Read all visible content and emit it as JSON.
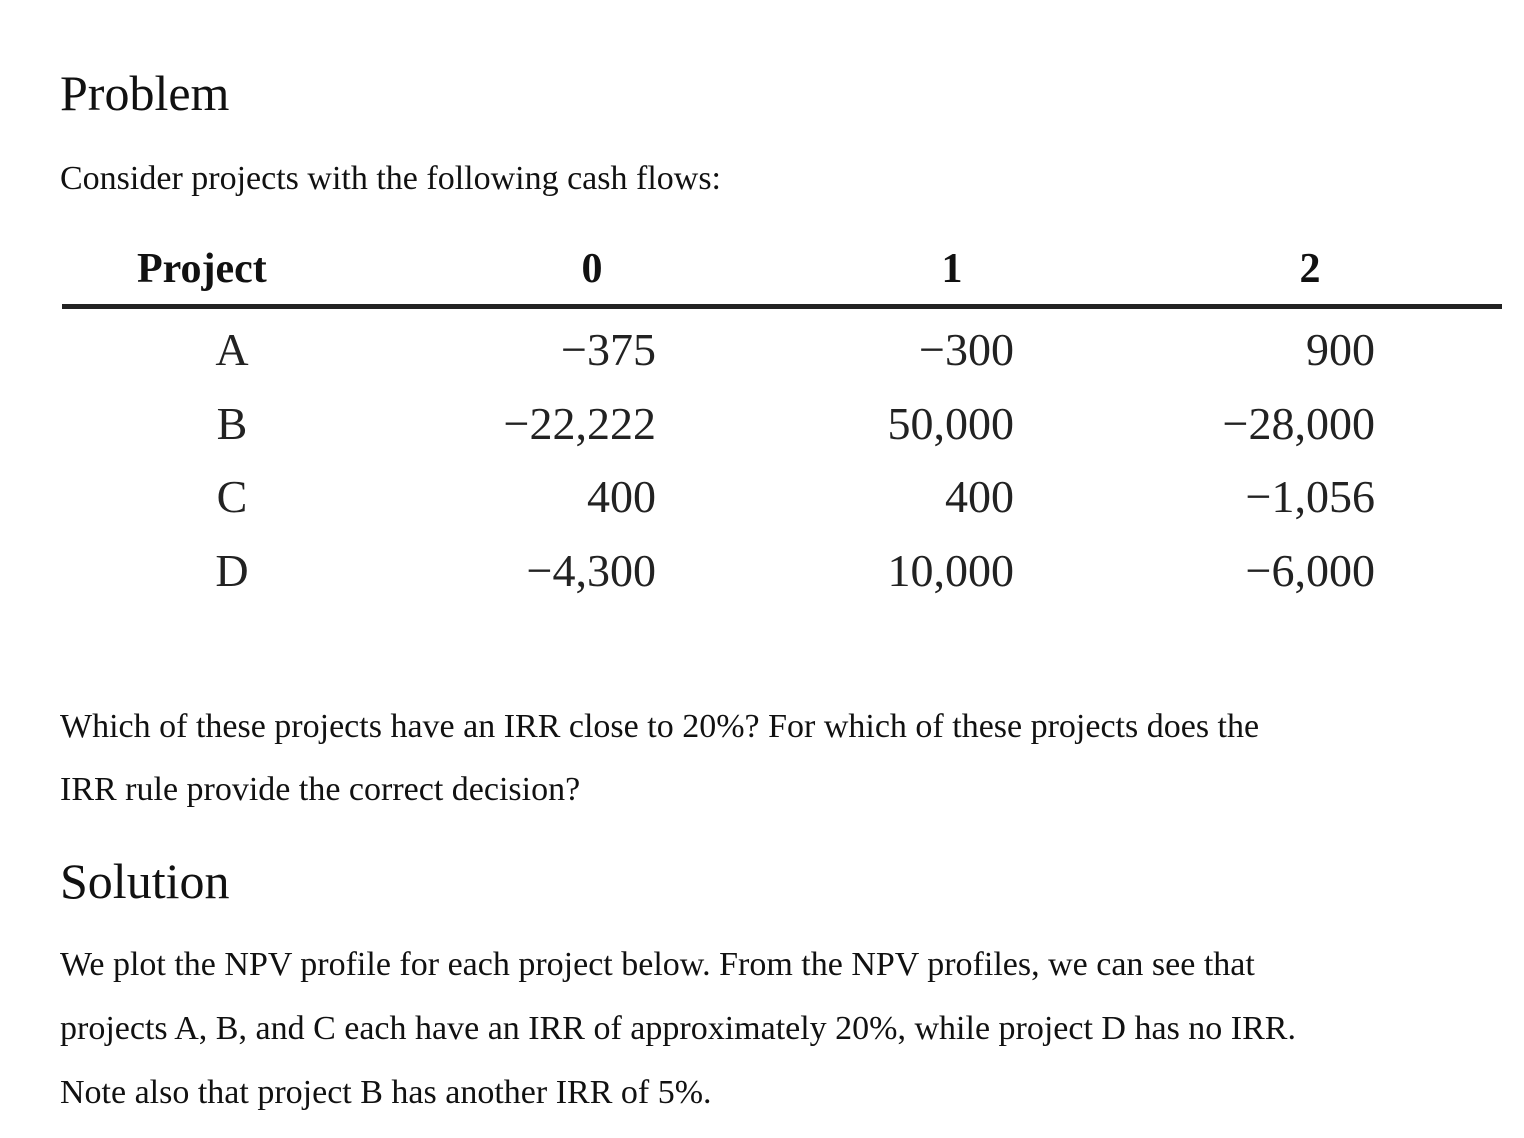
{
  "problem": {
    "heading": "Problem",
    "intro": "Consider projects with the following cash flows:",
    "table": {
      "header": [
        "Project",
        "0",
        "1",
        "2"
      ],
      "rows": [
        [
          "A",
          "−375",
          "−300",
          "900"
        ],
        [
          "B",
          "−22,222",
          "50,000",
          "−28,000"
        ],
        [
          "C",
          "400",
          "400",
          "−1,056"
        ],
        [
          "D",
          "−4,300",
          "10,000",
          "−6,000"
        ]
      ]
    },
    "question": [
      "Which of these projects have an IRR close to 20%? For which of these projects does the",
      "IRR rule provide the correct decision?"
    ]
  },
  "solution": {
    "heading": "Solution",
    "lines": [
      "We plot the NPV profile for each project below. From the NPV profiles, we can see that",
      "projects A, B, and C each have an IRR of approximately 20%, while project D has no IRR.",
      "Note also that project B has another IRR of 5%."
    ]
  }
}
